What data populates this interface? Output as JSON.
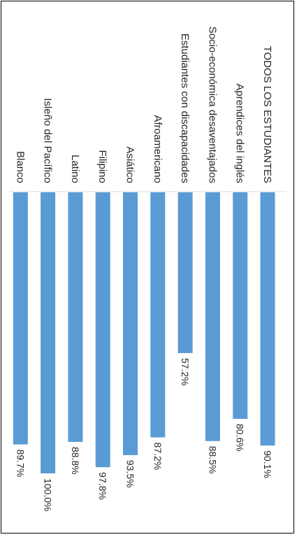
{
  "chart_data": {
    "type": "bar",
    "orientation": "horizontal",
    "title": "",
    "xlabel": "",
    "ylabel": "",
    "xlim": [
      0,
      100
    ],
    "grid": false,
    "legend": "none",
    "bar_color": "#5B9BD5",
    "categories": [
      "TODOS LOS ESTUDIANTES",
      "Aprendices del inglés",
      "Socio-económica desaventajados",
      "Estudiantes con discapacidades",
      "Afroamericano",
      "Asiático",
      "Filipino",
      "Latino",
      "Isleño del Pacífico",
      "Blanco"
    ],
    "values": [
      90.1,
      80.6,
      88.5,
      57.2,
      87.2,
      93.5,
      97.8,
      88.8,
      100.0,
      89.7
    ],
    "value_labels": [
      "90.1%",
      "80.6%",
      "88.5%",
      "57.2%",
      "87.2%",
      "93.5%",
      "97.8%",
      "88.8%",
      "100.0%",
      "89.7%"
    ]
  }
}
